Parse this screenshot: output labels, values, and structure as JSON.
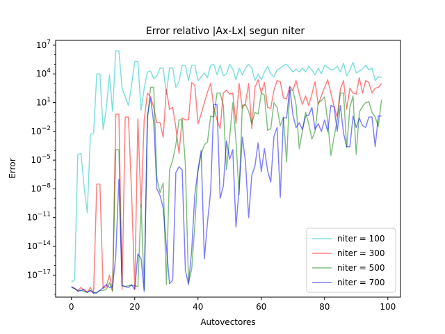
{
  "chart_data": {
    "type": "line",
    "title": "Error relativo |Ax-Lx| segun niter",
    "xlabel": "Autovectores",
    "ylabel": "Error",
    "yscale": "log",
    "xlim": [
      -5,
      104
    ],
    "ylim_exp": [
      -19.3,
      7.5
    ],
    "xticks": [
      0,
      20,
      40,
      60,
      80,
      100
    ],
    "yticks_exp": [
      -17,
      -14,
      -11,
      -8,
      -5,
      -2,
      1,
      4,
      7
    ],
    "grid": false,
    "legend_position": "lower right",
    "series_y_unit": "log10(Error)",
    "series": [
      {
        "name": "niter = 100",
        "color": "#00bfbf",
        "x": [
          0,
          1,
          2,
          3,
          4,
          5,
          6,
          7,
          8,
          9,
          10,
          11,
          12,
          13,
          14,
          15,
          16,
          17,
          18,
          19,
          20,
          21,
          22,
          23,
          24,
          25,
          26,
          27,
          28,
          29,
          30,
          31,
          32,
          33,
          34,
          35,
          36,
          37,
          38,
          39,
          40,
          41,
          42,
          43,
          44,
          45,
          46,
          47,
          48,
          49,
          50,
          51,
          52,
          53,
          54,
          55,
          56,
          57,
          58,
          59,
          60,
          61,
          62,
          63,
          64,
          65,
          66,
          67,
          68,
          69,
          70,
          71,
          72,
          73,
          74,
          75,
          76,
          77,
          78,
          79,
          80,
          81,
          82,
          83,
          84,
          85,
          86,
          87,
          88,
          89,
          90,
          91,
          92,
          93,
          94,
          95,
          96,
          97,
          98
        ],
        "values": [
          -17.7,
          -17.5,
          -4.4,
          -4.3,
          -7.8,
          -10.5,
          -2.3,
          -2.2,
          4.0,
          4.0,
          -1.8,
          0.3,
          3.9,
          0.1,
          6.4,
          6.4,
          2.5,
          1.6,
          0.7,
          2.8,
          5.3,
          5.3,
          0.2,
          2.5,
          4.2,
          4.3,
          3.5,
          3.8,
          4.6,
          4.6,
          1.9,
          4.6,
          4.6,
          2.6,
          3.2,
          4.9,
          4.9,
          3.3,
          4.9,
          4.9,
          3.3,
          3.7,
          4.1,
          3.6,
          4.9,
          5.0,
          3.9,
          4.9,
          3.8,
          4.0,
          5.0,
          4.5,
          3.4,
          4.6,
          3.9,
          4.6,
          5.0,
          4.6,
          3.3,
          4.0,
          3.4,
          4.2,
          4.8,
          4.0,
          3.7,
          4.4,
          4.6,
          4.9,
          5.0,
          4.6,
          4.2,
          4.5,
          4.2,
          4.6,
          4.2,
          4.8,
          4.4,
          3.9,
          4.6,
          4.0,
          4.9,
          4.7,
          4.4,
          4.5,
          4.8,
          4.2,
          5.1,
          3.8,
          4.4,
          5.2,
          4.1,
          4.3,
          4.5,
          4.9,
          4.4,
          4.6,
          3.3,
          3.7,
          3.6
        ]
      },
      {
        "name": "niter = 300",
        "color": "#ff0000",
        "x": [
          0,
          1,
          2,
          3,
          4,
          5,
          6,
          7,
          8,
          9,
          10,
          11,
          12,
          13,
          14,
          15,
          16,
          17,
          18,
          19,
          20,
          21,
          22,
          23,
          24,
          25,
          26,
          27,
          28,
          29,
          30,
          31,
          32,
          33,
          34,
          35,
          36,
          37,
          38,
          39,
          40,
          41,
          42,
          43,
          44,
          45,
          46,
          47,
          48,
          49,
          50,
          51,
          52,
          53,
          54,
          55,
          56,
          57,
          58,
          59,
          60,
          61,
          62,
          63,
          64,
          65,
          66,
          67,
          68,
          69,
          70,
          71,
          72,
          73,
          74,
          75,
          76,
          77,
          78,
          79,
          80,
          81,
          82,
          83,
          84,
          85,
          86,
          87,
          88,
          89,
          90,
          91,
          92,
          93,
          94,
          95,
          96,
          97,
          98
        ],
        "values": [
          -18.2,
          -18.4,
          -18.6,
          -18.3,
          -18.6,
          -18.8,
          -18.3,
          -18.9,
          -7.5,
          -7.5,
          -18.4,
          -18.2,
          -17.0,
          -18.6,
          -0.2,
          -0.2,
          -18.5,
          -0.5,
          -0.5,
          -8.3,
          -18.5,
          -0.7,
          -10.0,
          -0.8,
          2.0,
          1.6,
          0.5,
          -1.1,
          -1.1,
          -2.6,
          2.4,
          0.3,
          0.5,
          -1.6,
          -4.3,
          -0.6,
          -0.8,
          -0.8,
          3.1,
          2.8,
          -1.2,
          -0.2,
          1.0,
          2.1,
          3.0,
          0.5,
          -0.8,
          -1.7,
          2.0,
          2.3,
          1.9,
          2.0,
          -1.2,
          3.0,
          0.4,
          0.9,
          3.0,
          -1.7,
          2.6,
          3.4,
          2.0,
          3.1,
          0.5,
          0.4,
          2.3,
          3.3,
          3.2,
          1.5,
          1.4,
          2.7,
          2.3,
          3.3,
          1.9,
          0.8,
          1.7,
          0.7,
          1.9,
          3.2,
          0.8,
          1.7,
          2.6,
          3.4,
          2.0,
          0.6,
          -0.5,
          2.4,
          3.3,
          0.3,
          2.5,
          2.0,
          1.9,
          3.6,
          2.0,
          3.3,
          3.1,
          2.0,
          2.5,
          2.6,
          3.0
        ]
      },
      {
        "name": "niter = 500",
        "color": "#008000",
        "x": [
          0,
          1,
          2,
          3,
          4,
          5,
          6,
          7,
          8,
          9,
          10,
          11,
          12,
          13,
          14,
          15,
          16,
          17,
          18,
          19,
          20,
          21,
          22,
          23,
          24,
          25,
          26,
          27,
          28,
          29,
          30,
          31,
          32,
          33,
          34,
          35,
          36,
          37,
          38,
          39,
          40,
          41,
          42,
          43,
          44,
          45,
          46,
          47,
          48,
          49,
          50,
          51,
          52,
          53,
          54,
          55,
          56,
          57,
          58,
          59,
          60,
          61,
          62,
          63,
          64,
          65,
          66,
          67,
          68,
          69,
          70,
          71,
          72,
          73,
          74,
          75,
          76,
          77,
          78,
          79,
          80,
          81,
          82,
          83,
          84,
          85,
          86,
          87,
          88,
          89,
          90,
          91,
          92,
          93,
          94,
          95,
          96,
          97,
          98
        ],
        "values": [
          -18.3,
          -18.4,
          -18.6,
          -18.6,
          -18.7,
          -18.8,
          -18.6,
          -18.8,
          -18.9,
          -18.6,
          -18.6,
          -18.5,
          -17.8,
          -18.7,
          -3.9,
          -3.9,
          -18.1,
          -18.2,
          -18.1,
          -18.1,
          -18.1,
          -18.2,
          -9.6,
          -18.5,
          -0.8,
          2.6,
          2.6,
          -6.9,
          -8.4,
          -7.4,
          -18.0,
          -6.0,
          -5.0,
          -3.4,
          -0.8,
          -0.8,
          -5.5,
          -17.8,
          -16.4,
          -11.8,
          -6.1,
          -4.4,
          -3.4,
          -3.1,
          -0.4,
          -0.5,
          2.0,
          2.0,
          0.7,
          -6.0,
          -2.6,
          1.0,
          -3.0,
          -8.6,
          0.7,
          0.8,
          0.1,
          -1.2,
          0.0,
          -0.2,
          2.0,
          1.8,
          -1.9,
          -1.7,
          1.0,
          0.5,
          -1.4,
          -0.5,
          -5.2,
          2.3,
          2.3,
          0.8,
          -3.8,
          -2.0,
          0.0,
          -1.2,
          -2.8,
          -2.0,
          1.0,
          1.2,
          1.6,
          -1.0,
          -4.5,
          -2.6,
          -0.8,
          2.0,
          2.0,
          -3.7,
          0.5,
          1.7,
          -4.4,
          0.0,
          0.6,
          1.0,
          1.1,
          0.0,
          -0.5,
          -1.5,
          1.3
        ]
      },
      {
        "name": "niter = 700",
        "color": "#0000ff",
        "x": [
          0,
          1,
          2,
          3,
          4,
          5,
          6,
          7,
          8,
          9,
          10,
          11,
          12,
          13,
          14,
          15,
          16,
          17,
          18,
          19,
          20,
          21,
          22,
          23,
          24,
          25,
          26,
          27,
          28,
          29,
          30,
          31,
          32,
          33,
          34,
          35,
          36,
          37,
          38,
          39,
          40,
          41,
          42,
          43,
          44,
          45,
          46,
          47,
          48,
          49,
          50,
          51,
          52,
          53,
          54,
          55,
          56,
          57,
          58,
          59,
          60,
          61,
          62,
          63,
          64,
          65,
          66,
          67,
          68,
          69,
          70,
          71,
          72,
          73,
          74,
          75,
          76,
          77,
          78,
          79,
          80,
          81,
          82,
          83,
          84,
          85,
          86,
          87,
          88,
          89,
          90,
          91,
          92,
          93,
          94,
          95,
          96,
          97,
          98
        ],
        "values": [
          -18.2,
          -18.4,
          -18.7,
          -18.6,
          -18.5,
          -18.8,
          -18.6,
          -18.9,
          -18.8,
          -18.6,
          -18.3,
          -18.0,
          -18.3,
          -18.2,
          -15.0,
          -7.0,
          -18.1,
          -18.2,
          -18.3,
          -18.0,
          -18.5,
          -14.8,
          -15.3,
          -18.7,
          -0.4,
          1.5,
          -1.1,
          -8.0,
          -8.7,
          -10.0,
          -14.0,
          -17.9,
          -17.5,
          -6.3,
          -5.7,
          -6.0,
          -16.5,
          -18.0,
          -14.4,
          -8.6,
          -6.0,
          -4.0,
          -15.3,
          -11.5,
          -8.2,
          0.8,
          0.8,
          -9.0,
          -7.7,
          -3.0,
          -4.9,
          -3.9,
          -12.0,
          -8.0,
          -2.6,
          -5.1,
          -11.0,
          -6.6,
          -5.6,
          -3.2,
          -6.2,
          -3.8,
          -6.1,
          -7.3,
          -2.5,
          -1.6,
          -8.9,
          -0.6,
          -0.6,
          2.6,
          -0.3,
          -1.6,
          -1.1,
          -1.8,
          -0.4,
          -0.3,
          0.5,
          -1.8,
          -1.2,
          -2.0,
          -0.8,
          -2.0,
          0.7,
          0.6,
          -2.0,
          0.7,
          -2.2,
          -3.6,
          -3.6,
          -0.4,
          -1.6,
          -0.6,
          -1.4,
          -1.6,
          -0.5,
          -0.5,
          -3.6,
          -0.4,
          -0.4
        ]
      }
    ]
  }
}
